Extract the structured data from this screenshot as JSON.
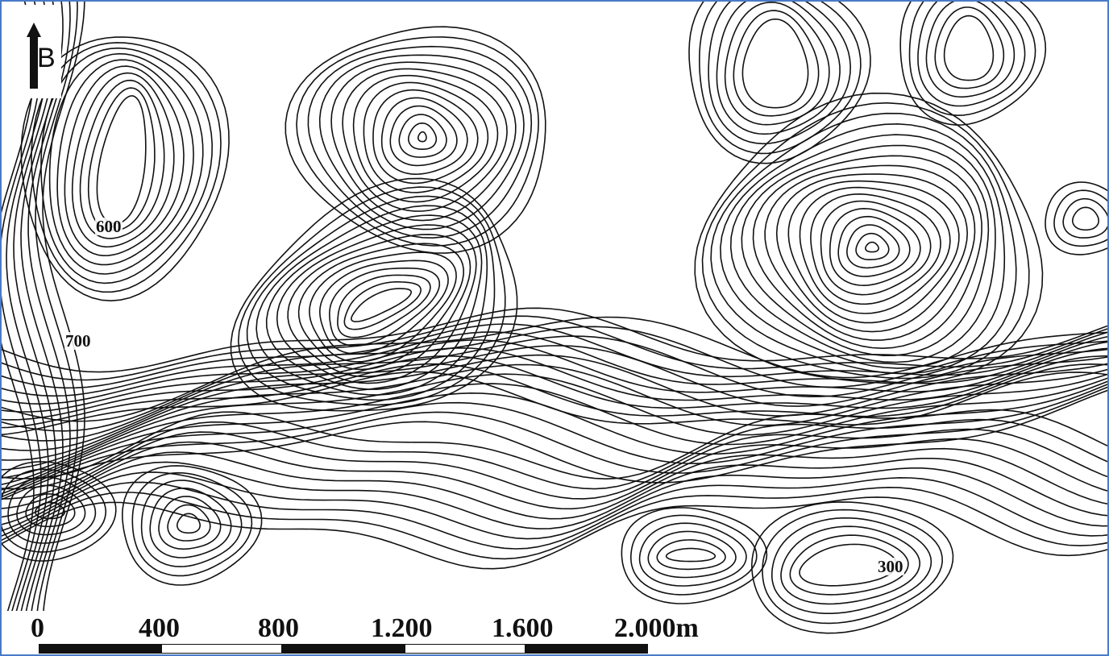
{
  "north_arrow": {
    "label": "B"
  },
  "elevation_labels": [
    "600",
    "700",
    "300"
  ],
  "scale_bar": {
    "ticks": [
      "0",
      "400",
      "800",
      "1.200",
      "1.600",
      "2.000m"
    ],
    "segment_colors": [
      "#111111",
      "#ffffff",
      "#111111",
      "#ffffff",
      "#111111"
    ]
  },
  "colors": {
    "contour": "#111111",
    "frame": "#4a7ac8",
    "background": "#ffffff"
  }
}
